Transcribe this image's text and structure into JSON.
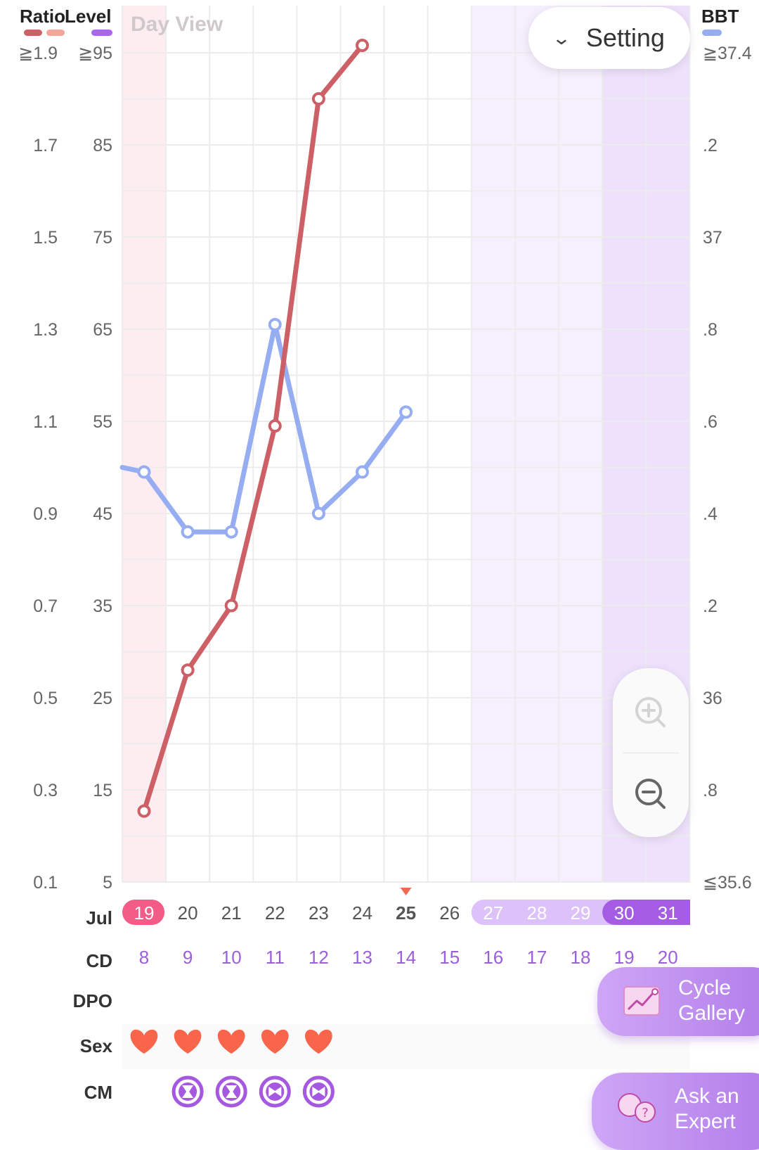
{
  "header": {
    "ratio_label": "Ratio",
    "level_label": "Level",
    "bbt_label": "BBT",
    "view_label": "Day View",
    "setting_label": "Setting"
  },
  "colors": {
    "ratio_line": "#cc6066",
    "ratio_swatch_light": "#f4a49a",
    "level_swatch": "#a967f0",
    "bbt_line": "#97adf2",
    "period_band": "#fdedf1",
    "fertile_band": "#f6effd",
    "ovulation_band": "#eee1fb",
    "heart": "#f9654a",
    "cm_circle": "#a559e0",
    "cd_text": "#9b5fd8"
  },
  "axes": {
    "ratio_ticks": [
      "≧1.9",
      "1.7",
      "1.5",
      "1.3",
      "1.1",
      "0.9",
      "0.7",
      "0.5",
      "0.3",
      "0.1"
    ],
    "level_ticks": [
      "≧95",
      "85",
      "75",
      "65",
      "55",
      "45",
      "35",
      "25",
      "15",
      "5"
    ],
    "bbt_ticks": [
      "≧37.4",
      ".2",
      "37",
      ".8",
      ".6",
      ".4",
      ".2",
      "36",
      ".8",
      "≦35.6"
    ]
  },
  "rows": {
    "month_label": "Jul",
    "cd_label": "CD",
    "dpo_label": "DPO",
    "sex_label": "Sex",
    "cm_label": "CM"
  },
  "days": [
    {
      "date": "19",
      "cd": "8",
      "sex": true,
      "cm": "",
      "zone": "period"
    },
    {
      "date": "20",
      "cd": "9",
      "sex": true,
      "cm": "a",
      "zone": ""
    },
    {
      "date": "21",
      "cd": "10",
      "sex": true,
      "cm": "a",
      "zone": ""
    },
    {
      "date": "22",
      "cd": "11",
      "sex": true,
      "cm": "b",
      "zone": ""
    },
    {
      "date": "23",
      "cd": "12",
      "sex": true,
      "cm": "b",
      "zone": ""
    },
    {
      "date": "24",
      "cd": "13",
      "sex": false,
      "cm": "",
      "zone": ""
    },
    {
      "date": "25",
      "cd": "14",
      "sex": false,
      "cm": "",
      "zone": "today"
    },
    {
      "date": "26",
      "cd": "15",
      "sex": false,
      "cm": "",
      "zone": ""
    },
    {
      "date": "27",
      "cd": "16",
      "sex": false,
      "cm": "",
      "zone": "fertile"
    },
    {
      "date": "28",
      "cd": "17",
      "sex": false,
      "cm": "",
      "zone": "fertile"
    },
    {
      "date": "29",
      "cd": "18",
      "sex": false,
      "cm": "",
      "zone": "fertile"
    },
    {
      "date": "30",
      "cd": "19",
      "sex": false,
      "cm": "",
      "zone": "ovulation"
    },
    {
      "date": "31",
      "cd": "20",
      "sex": false,
      "cm": "",
      "zone": "ovulation"
    }
  ],
  "chart_data": {
    "type": "line",
    "x": [
      "19",
      "20",
      "21",
      "22",
      "23",
      "24",
      "25",
      "26",
      "27",
      "28",
      "29",
      "30",
      "31"
    ],
    "series": [
      {
        "name": "Ratio",
        "axis": "level",
        "values": [
          12.7,
          28,
          35,
          54.5,
          90,
          95.8,
          null,
          null,
          null,
          null,
          null,
          null,
          null
        ]
      },
      {
        "name": "BBT",
        "axis": "bbt",
        "values": [
          36.49,
          36.36,
          36.36,
          36.81,
          36.4,
          36.49,
          36.62,
          null,
          null,
          null,
          null,
          null,
          null
        ]
      }
    ],
    "bbt_lead_in": 36.5,
    "level_range": [
      5,
      95
    ],
    "ratio_range": [
      0.1,
      1.9
    ],
    "bbt_range": [
      35.6,
      37.4
    ],
    "grid": true
  },
  "buttons": {
    "cycle_gallery_line1": "Cycle",
    "cycle_gallery_line2": "Gallery",
    "ask_expert_line1": "Ask an",
    "ask_expert_line2": "Expert"
  }
}
